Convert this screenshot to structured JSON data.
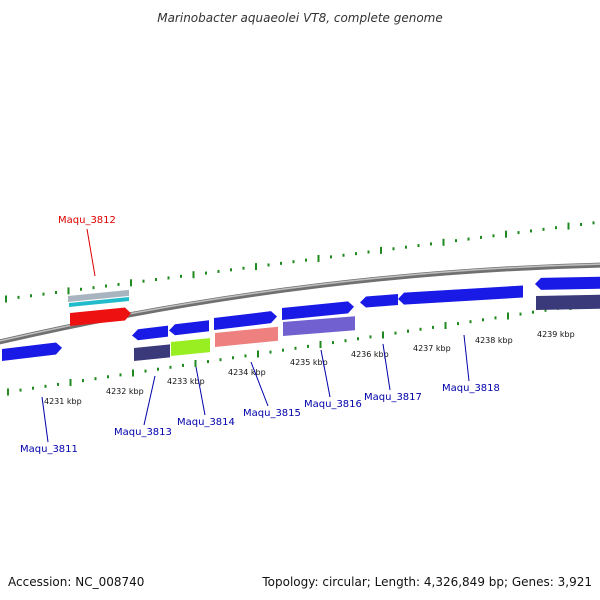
{
  "title": "Marinobacter aquaeolei VT8, complete genome",
  "footer": {
    "accession": "Accession: NC_008740",
    "summary": "Topology: circular; Length: 4,326,849 bp; Genes: 3,921"
  },
  "colors": {
    "backbone": "#8a8a8a",
    "tick": "#1f8a1f",
    "label_default": "#0000aa",
    "label_highlight": "#dd0000",
    "gene_blue": "#1a1ae6",
    "gene_navy": "#3a3a7a",
    "gene_violet": "#7060d0",
    "gene_green": "#99ee22",
    "gene_salmon": "#ee8080",
    "gene_red": "#ee1111",
    "gene_cyan": "#22bbcc",
    "gene_grey": "#a8b4c0"
  },
  "scale_labels": [
    "4231 kbp",
    "4232 kbp",
    "4233 kbp",
    "4234 kbp",
    "4235 kbp",
    "4236 kbp",
    "4237 kbp",
    "4238 kbp",
    "4239 kbp"
  ],
  "gene_labels": [
    {
      "id": "maqu-3811",
      "text": "Maqu_3811",
      "highlight": false
    },
    {
      "id": "maqu-3812",
      "text": "Maqu_3812",
      "highlight": true
    },
    {
      "id": "maqu-3813",
      "text": "Maqu_3813",
      "highlight": false
    },
    {
      "id": "maqu-3814",
      "text": "Maqu_3814",
      "highlight": false
    },
    {
      "id": "maqu-3815",
      "text": "Maqu_3815",
      "highlight": false
    },
    {
      "id": "maqu-3816",
      "text": "Maqu_3816",
      "highlight": false
    },
    {
      "id": "maqu-3817",
      "text": "Maqu_3817",
      "highlight": false
    },
    {
      "id": "maqu-3818",
      "text": "Maqu_3818",
      "highlight": false
    }
  ]
}
